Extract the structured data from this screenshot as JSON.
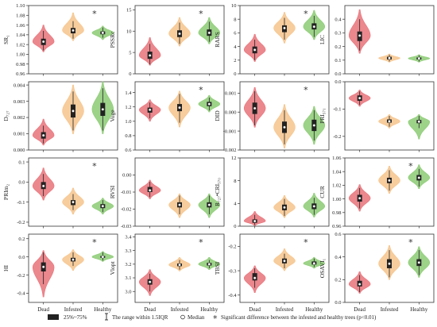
{
  "chart_data": [
    {
      "type": "violin",
      "ylabel": "SR₁",
      "ylim": [
        0.96,
        1.1
      ],
      "yticks": [
        "0.96",
        "0.98",
        "1.00",
        "1.02",
        "1.04",
        "1.06",
        "1.08",
        "1.10"
      ],
      "yticks_v": [
        0.96,
        0.98,
        1.0,
        1.02,
        1.04,
        1.06,
        1.08,
        1.1
      ],
      "significant": true,
      "groups": [
        {
          "category": "Dead",
          "q1": 1.019,
          "median": 1.026,
          "q3": 1.032,
          "wlo": 1.008,
          "whi": 1.048,
          "min": 1.005,
          "max": 1.06
        },
        {
          "category": "Infested",
          "q1": 1.043,
          "median": 1.049,
          "q3": 1.054,
          "wlo": 1.032,
          "whi": 1.068,
          "min": 1.028,
          "max": 1.085
        },
        {
          "category": "Healthy",
          "q1": 1.041,
          "median": 1.044,
          "q3": 1.047,
          "wlo": 1.034,
          "whi": 1.055,
          "min": 1.03,
          "max": 1.058
        }
      ]
    },
    {
      "type": "violin",
      "ylabel": "PSSRc",
      "ylim": [
        0,
        16
      ],
      "yticks": [
        "0",
        "5",
        "10",
        "15"
      ],
      "yticks_v": [
        0,
        5,
        10,
        15
      ],
      "significant": true,
      "groups": [
        {
          "category": "Dead",
          "q1": 3.5,
          "median": 4.3,
          "q3": 5.2,
          "wlo": 2.2,
          "whi": 7.0,
          "min": 2.0,
          "max": 8.5
        },
        {
          "category": "Infested",
          "q1": 8.6,
          "median": 9.4,
          "q3": 10.2,
          "wlo": 7.0,
          "whi": 12.0,
          "min": 6.5,
          "max": 13.2
        },
        {
          "category": "Healthy",
          "q1": 8.9,
          "median": 9.6,
          "q3": 10.4,
          "wlo": 7.5,
          "whi": 12.2,
          "min": 7.0,
          "max": 13.2
        }
      ]
    },
    {
      "type": "violin",
      "ylabel": "RARS",
      "ylim": [
        0,
        10
      ],
      "yticks": [
        "0",
        "2",
        "4",
        "6",
        "8",
        "10"
      ],
      "yticks_v": [
        0,
        2,
        4,
        6,
        8,
        10
      ],
      "significant": true,
      "groups": [
        {
          "category": "Dead",
          "q1": 3.0,
          "median": 3.5,
          "q3": 4.0,
          "wlo": 2.0,
          "whi": 5.0,
          "min": 1.8,
          "max": 5.8
        },
        {
          "category": "Infested",
          "q1": 6.1,
          "median": 6.7,
          "q3": 7.1,
          "wlo": 5.0,
          "whi": 8.2,
          "min": 4.5,
          "max": 9.0
        },
        {
          "category": "Healthy",
          "q1": 6.5,
          "median": 6.9,
          "q3": 7.4,
          "wlo": 5.4,
          "whi": 8.5,
          "min": 5.0,
          "max": 9.3
        }
      ]
    },
    {
      "type": "violin",
      "ylabel": "LIC",
      "ylim": [
        0.0,
        0.5
      ],
      "yticks": [
        "0.0",
        "0.1",
        "0.2",
        "0.3",
        "0.4"
      ],
      "yticks_v": [
        0,
        0.1,
        0.2,
        0.3,
        0.4
      ],
      "significant": false,
      "groups": [
        {
          "category": "Dead",
          "q1": 0.24,
          "median": 0.28,
          "q3": 0.31,
          "wlo": 0.17,
          "whi": 0.4,
          "min": 0.15,
          "max": 0.47
        },
        {
          "category": "Infested",
          "q1": 0.105,
          "median": 0.115,
          "q3": 0.125,
          "wlo": 0.09,
          "whi": 0.14,
          "min": 0.085,
          "max": 0.145
        },
        {
          "category": "Healthy",
          "q1": 0.105,
          "median": 0.113,
          "q3": 0.12,
          "wlo": 0.09,
          "whi": 0.135,
          "min": 0.085,
          "max": 0.14
        }
      ]
    },
    {
      "type": "violin",
      "ylabel": "D₇₂₇",
      "ylim": [
        0.0,
        0.0042
      ],
      "yticks": [
        "0.000",
        "0.001",
        "0.002",
        "0.003",
        "0.004"
      ],
      "yticks_v": [
        0,
        0.001,
        0.002,
        0.003,
        0.004
      ],
      "significant": false,
      "groups": [
        {
          "category": "Dead",
          "q1": 0.0007,
          "median": 0.0009,
          "q3": 0.0011,
          "wlo": 0.0004,
          "whi": 0.0015,
          "min": 0.0003,
          "max": 0.0019
        },
        {
          "category": "Infested",
          "q1": 0.002,
          "median": 0.0024,
          "q3": 0.0028,
          "wlo": 0.0012,
          "whi": 0.0036,
          "min": 0.001,
          "max": 0.004
        },
        {
          "category": "Healthy",
          "q1": 0.0021,
          "median": 0.0025,
          "q3": 0.0029,
          "wlo": 0.0012,
          "whi": 0.0038,
          "min": 0.001,
          "max": 0.0042
        }
      ]
    },
    {
      "type": "violin",
      "ylabel": "Voge",
      "ylim": [
        0.6,
        1.55
      ],
      "yticks": [
        "0.6",
        "0.8",
        "1.0",
        "1.2",
        "1.4"
      ],
      "yticks_v": [
        0.6,
        0.8,
        1.0,
        1.2,
        1.4
      ],
      "significant": true,
      "groups": [
        {
          "category": "Dead",
          "q1": 1.12,
          "median": 1.16,
          "q3": 1.19,
          "wlo": 1.04,
          "whi": 1.26,
          "min": 1.0,
          "max": 1.3
        },
        {
          "category": "Infested",
          "q1": 1.14,
          "median": 1.19,
          "q3": 1.24,
          "wlo": 0.98,
          "whi": 1.38,
          "min": 0.92,
          "max": 1.42
        },
        {
          "category": "Healthy",
          "q1": 1.21,
          "median": 1.24,
          "q3": 1.27,
          "wlo": 1.15,
          "whi": 1.33,
          "min": 1.13,
          "max": 1.36
        }
      ]
    },
    {
      "type": "violin",
      "ylabel": "DID",
      "ylim": [
        -0.002,
        0.0016
      ],
      "yticks": [
        "-0.002",
        "-0.001",
        "0.000",
        "0.001"
      ],
      "yticks_v": [
        -0.002,
        -0.001,
        0,
        0.001
      ],
      "significant": true,
      "groups": [
        {
          "category": "Dead",
          "q1": -0.0001,
          "median": 0.0002,
          "q3": 0.0005,
          "wlo": -0.0007,
          "whi": 0.0011,
          "min": -0.0008,
          "max": 0.0013
        },
        {
          "category": "Infested",
          "q1": -0.0011,
          "median": -0.0008,
          "q3": -0.0005,
          "wlo": -0.0017,
          "whi": 0.0001,
          "min": -0.0019,
          "max": 0.0004
        },
        {
          "category": "Healthy",
          "q1": -0.001,
          "median": -0.0007,
          "q3": -0.0004,
          "wlo": -0.0015,
          "whi": 0.0001,
          "min": -0.0017,
          "max": 0.0003
        }
      ]
    },
    {
      "type": "violin",
      "ylabel": "PRI₅₇₁",
      "ylim": [
        -0.25,
        0.0
      ],
      "yticks": [
        "-0.2",
        "-0.1",
        "0.0"
      ],
      "yticks_v": [
        -0.2,
        -0.1,
        0.0
      ],
      "significant": false,
      "groups": [
        {
          "category": "Dead",
          "q1": -0.07,
          "median": -0.06,
          "q3": -0.05,
          "wlo": -0.085,
          "whi": -0.035,
          "min": -0.09,
          "max": -0.03
        },
        {
          "category": "Infested",
          "q1": -0.15,
          "median": -0.145,
          "q3": -0.138,
          "wlo": -0.165,
          "whi": -0.125,
          "min": -0.17,
          "max": -0.12
        },
        {
          "category": "Healthy",
          "q1": -0.152,
          "median": -0.146,
          "q3": -0.14,
          "wlo": -0.17,
          "whi": -0.125,
          "min": -0.21,
          "max": -0.12
        }
      ]
    },
    {
      "type": "violin",
      "ylabel": "PRIm₂",
      "ylim": [
        -0.22,
        0.12
      ],
      "yticks": [
        "-0.2",
        "-0.1",
        "0.0",
        "0.1"
      ],
      "yticks_v": [
        -0.2,
        -0.1,
        0.0,
        0.1
      ],
      "significant": true,
      "groups": [
        {
          "category": "Dead",
          "q1": -0.035,
          "median": -0.02,
          "q3": 0.0,
          "wlo": -0.07,
          "whi": 0.04,
          "min": -0.09,
          "max": 0.07
        },
        {
          "category": "Infested",
          "q1": -0.115,
          "median": -0.1,
          "q3": -0.09,
          "wlo": -0.14,
          "whi": -0.06,
          "min": -0.16,
          "max": -0.03
        },
        {
          "category": "Healthy",
          "q1": -0.13,
          "median": -0.12,
          "q3": -0.11,
          "wlo": -0.15,
          "whi": -0.09,
          "min": -0.16,
          "max": -0.08
        }
      ]
    },
    {
      "type": "violin",
      "ylabel": "RVSI",
      "ylim": [
        -0.03,
        0.01
      ],
      "yticks": [
        "-0.03",
        "-0.02",
        "-0.01",
        "0.00"
      ],
      "yticks_v": [
        -0.03,
        -0.02,
        -0.01,
        0.0
      ],
      "significant": false,
      "groups": [
        {
          "category": "Dead",
          "q1": -0.01,
          "median": -0.009,
          "q3": -0.007,
          "wlo": -0.013,
          "whi": -0.004,
          "min": -0.014,
          "max": -0.003
        },
        {
          "category": "Infested",
          "q1": -0.019,
          "median": -0.0175,
          "q3": -0.016,
          "wlo": -0.023,
          "whi": -0.012,
          "min": -0.025,
          "max": -0.011
        },
        {
          "category": "Healthy",
          "q1": -0.019,
          "median": -0.0175,
          "q3": -0.016,
          "wlo": -0.023,
          "whi": -0.012,
          "min": -0.025,
          "max": -0.011
        }
      ]
    },
    {
      "type": "violin",
      "ylabel": "R₇₂₇•CRI₅₇₀",
      "ylim": [
        0,
        12
      ],
      "yticks": [
        "0",
        "4",
        "8",
        "12"
      ],
      "yticks_v": [
        0,
        4,
        8,
        12
      ],
      "significant": false,
      "groups": [
        {
          "category": "Dead",
          "q1": 0.6,
          "median": 0.9,
          "q3": 1.2,
          "wlo": 0.2,
          "whi": 2.0,
          "min": 0.1,
          "max": 2.6
        },
        {
          "category": "Infested",
          "q1": 2.8,
          "median": 3.3,
          "q3": 3.8,
          "wlo": 1.8,
          "whi": 4.8,
          "min": 1.5,
          "max": 5.4
        },
        {
          "category": "Healthy",
          "q1": 3.0,
          "median": 3.5,
          "q3": 4.0,
          "wlo": 2.0,
          "whi": 5.0,
          "min": 1.6,
          "max": 5.8
        }
      ]
    },
    {
      "type": "violin",
      "ylabel": "CUR",
      "ylim": [
        0.96,
        1.06
      ],
      "yticks": [
        "0.96",
        "0.98",
        "1.00",
        "1.02",
        "1.04",
        "1.06"
      ],
      "yticks_v": [
        0.96,
        0.98,
        1.0,
        1.02,
        1.04,
        1.06
      ],
      "significant": true,
      "groups": [
        {
          "category": "Dead",
          "q1": 0.996,
          "median": 1.001,
          "q3": 1.006,
          "wlo": 0.986,
          "whi": 1.016,
          "min": 0.982,
          "max": 1.021
        },
        {
          "category": "Infested",
          "q1": 1.023,
          "median": 1.027,
          "q3": 1.031,
          "wlo": 1.012,
          "whi": 1.042,
          "min": 1.008,
          "max": 1.048
        },
        {
          "category": "Healthy",
          "q1": 1.027,
          "median": 1.031,
          "q3": 1.035,
          "wlo": 1.018,
          "whi": 1.044,
          "min": 1.015,
          "max": 1.05
        }
      ]
    },
    {
      "type": "violin",
      "ylabel": "HI",
      "ylim": [
        -0.5,
        0.25
      ],
      "yticks": [
        "-0.4",
        "-0.2",
        "0.0",
        "0.2"
      ],
      "yticks_v": [
        -0.4,
        -0.2,
        0.0,
        0.2
      ],
      "significant": true,
      "groups": [
        {
          "category": "Dead",
          "q1": -0.16,
          "median": -0.11,
          "q3": -0.06,
          "wlo": -0.3,
          "whi": 0.05,
          "min": -0.44,
          "max": 0.07
        },
        {
          "category": "Infested",
          "q1": -0.05,
          "median": -0.03,
          "q3": -0.01,
          "wlo": -0.1,
          "whi": 0.05,
          "min": -0.15,
          "max": 0.08
        },
        {
          "category": "Healthy",
          "q1": -0.01,
          "median": 0.0,
          "q3": 0.01,
          "wlo": -0.04,
          "whi": 0.05,
          "min": -0.05,
          "max": 0.06
        }
      ]
    },
    {
      "type": "violin",
      "ylabel": "Vlopt",
      "ylim": [
        2.92,
        3.42
      ],
      "yticks": [
        "3.0",
        "3.1",
        "3.2",
        "3.3",
        "3.4"
      ],
      "yticks_v": [
        3.0,
        3.1,
        3.2,
        3.3,
        3.4
      ],
      "significant": true,
      "groups": [
        {
          "category": "Dead",
          "q1": 3.05,
          "median": 3.07,
          "q3": 3.09,
          "wlo": 3.0,
          "whi": 3.13,
          "min": 2.97,
          "max": 3.16
        },
        {
          "category": "Infested",
          "q1": 3.185,
          "median": 3.195,
          "q3": 3.205,
          "wlo": 3.16,
          "whi": 3.23,
          "min": 3.15,
          "max": 3.25
        },
        {
          "category": "Healthy",
          "q1": 3.19,
          "median": 3.2,
          "q3": 3.21,
          "wlo": 3.17,
          "whi": 3.23,
          "min": 3.16,
          "max": 3.25
        }
      ]
    },
    {
      "type": "violin",
      "ylabel": "TBSI",
      "ylim": [
        -0.43,
        -0.15
      ],
      "yticks": [
        "-0.4",
        "-0.3",
        "-0.2"
      ],
      "yticks_v": [
        -0.4,
        -0.3,
        -0.2
      ],
      "significant": true,
      "groups": [
        {
          "category": "Dead",
          "q1": -0.34,
          "median": -0.33,
          "q3": -0.31,
          "wlo": -0.37,
          "whi": -0.29,
          "min": -0.39,
          "max": -0.28
        },
        {
          "category": "Infested",
          "q1": -0.27,
          "median": -0.26,
          "q3": -0.25,
          "wlo": -0.29,
          "whi": -0.23,
          "min": -0.3,
          "max": -0.21
        },
        {
          "category": "Healthy",
          "q1": -0.275,
          "median": -0.27,
          "q3": -0.262,
          "wlo": -0.285,
          "whi": -0.25,
          "min": -0.29,
          "max": -0.245
        }
      ]
    },
    {
      "type": "violin",
      "ylabel": "OSAVI₁",
      "ylim": [
        0.0,
        0.6
      ],
      "yticks": [
        "0.0",
        "0.2",
        "0.4",
        "0.6"
      ],
      "yticks_v": [
        0.0,
        0.2,
        0.4,
        0.6
      ],
      "significant": true,
      "groups": [
        {
          "category": "Dead",
          "q1": 0.14,
          "median": 0.16,
          "q3": 0.19,
          "wlo": 0.09,
          "whi": 0.24,
          "min": 0.08,
          "max": 0.27
        },
        {
          "category": "Infested",
          "q1": 0.3,
          "median": 0.34,
          "q3": 0.38,
          "wlo": 0.22,
          "whi": 0.46,
          "min": 0.2,
          "max": 0.5
        },
        {
          "category": "Healthy",
          "q1": 0.32,
          "median": 0.35,
          "q3": 0.38,
          "wlo": 0.24,
          "whi": 0.46,
          "min": 0.22,
          "max": 0.49
        }
      ]
    }
  ],
  "categories": [
    "Dead",
    "Infested",
    "Healthy"
  ],
  "colors": {
    "Dead": "#e8737a",
    "Infested": "#f6c48c",
    "Healthy": "#8ccb74",
    "box": "#222222",
    "median_dot": "#ffffff"
  },
  "star_symbol": "*",
  "legend": {
    "iqr": "25%~75%",
    "range": "The range within 1.5IQR",
    "median": "Median",
    "significance": "Significant difference between the infested and healthy trees (p<0.01)"
  }
}
